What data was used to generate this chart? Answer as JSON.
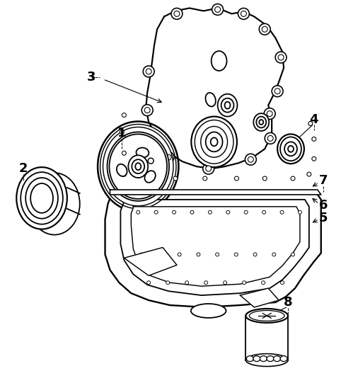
{
  "background_color": "#ffffff",
  "line_color": "#000000",
  "line_width": 1.3,
  "label_fontsize": 13,
  "figsize": [
    4.82,
    5.24
  ],
  "dpi": 100
}
